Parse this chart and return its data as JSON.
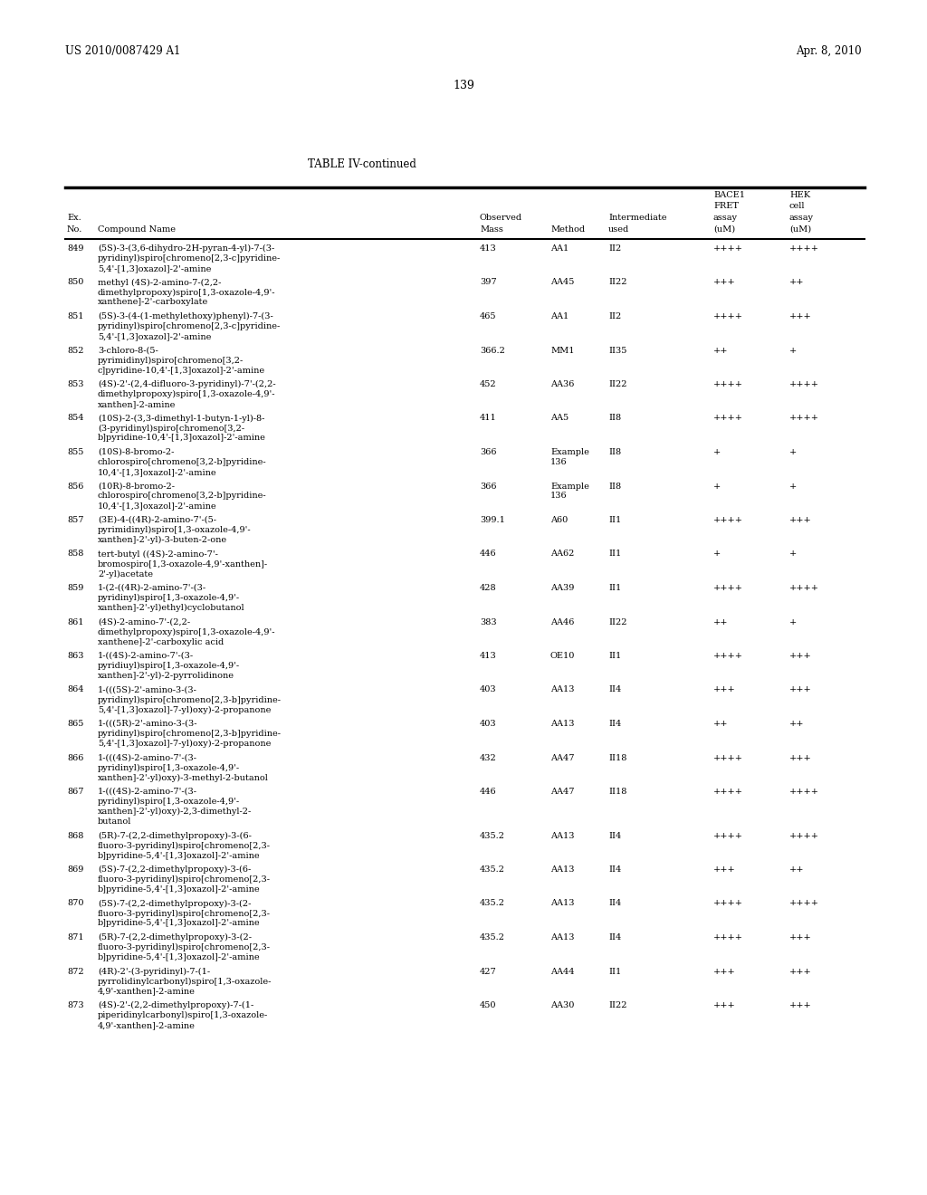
{
  "header_left": "US 2010/0087429 A1",
  "header_right": "Apr. 8, 2010",
  "page_number": "139",
  "table_title": "TABLE IV-continued",
  "rows": [
    [
      "849",
      "(5S)-3-(3,6-dihydro-2H-pyran-4-yl)-7-(3-\npyridinyl)spiro[chromeno[2,3-c]pyridine-\n5,4'-[1,3]oxazol]-2'-amine",
      "413",
      "AA1",
      "II2",
      "++++",
      "++++"
    ],
    [
      "850",
      "methyl (4S)-2-amino-7-(2,2-\ndimethylpropoxy)spiro[1,3-oxazole-4,9'-\nxanthene]-2'-carboxylate",
      "397",
      "AA45",
      "II22",
      "+++",
      "++"
    ],
    [
      "851",
      "(5S)-3-(4-(1-methylethoxy)phenyl)-7-(3-\npyridinyl)spiro[chromeno[2,3-c]pyridine-\n5,4'-[1,3]oxazol]-2'-amine",
      "465",
      "AA1",
      "II2",
      "++++",
      "+++"
    ],
    [
      "852",
      "3-chloro-8-(5-\npyrimidinyl)spiro[chromeno[3,2-\nc]pyridine-10,4'-[1,3]oxazol]-2'-amine",
      "366.2",
      "MM1",
      "II35",
      "++",
      "+"
    ],
    [
      "853",
      "(4S)-2'-(2,4-difluoro-3-pyridinyl)-7'-(2,2-\ndimethylpropoxy)spiro[1,3-oxazole-4,9'-\nxanthen]-2-amine",
      "452",
      "AA36",
      "II22",
      "++++",
      "++++"
    ],
    [
      "854",
      "(10S)-2-(3,3-dimethyl-1-butyn-1-yl)-8-\n(3-pyridinyl)spiro[chromeno[3,2-\nb]pyridine-10,4'-[1,3]oxazol]-2'-amine",
      "411",
      "AA5",
      "II8",
      "++++",
      "++++"
    ],
    [
      "855",
      "(10S)-8-bromo-2-\nchlorospiro[chromeno[3,2-b]pyridine-\n10,4'-[1,3]oxazol]-2'-amine",
      "366",
      "Example\n136",
      "II8",
      "+",
      "+"
    ],
    [
      "856",
      "(10R)-8-bromo-2-\nchlorospiro[chromeno[3,2-b]pyridine-\n10,4'-[1,3]oxazol]-2'-amine",
      "366",
      "Example\n136",
      "II8",
      "+",
      "+"
    ],
    [
      "857",
      "(3E)-4-((4R)-2-amino-7'-(5-\npyrimidinyl)spiro[1,3-oxazole-4,9'-\nxanthen]-2'-yl)-3-buten-2-one",
      "399.1",
      "A60",
      "II1",
      "++++",
      "+++"
    ],
    [
      "858",
      "tert-butyl ((4S)-2-amino-7'-\nbromospiro[1,3-oxazole-4,9'-xanthen]-\n2'-yl)acetate",
      "446",
      "AA62",
      "II1",
      "+",
      "+"
    ],
    [
      "859",
      "1-(2-((4R)-2-amino-7'-(3-\npyridinyl)spiro[1,3-oxazole-4,9'-\nxanthen]-2'-yl)ethyl)cyclobutanol",
      "428",
      "AA39",
      "II1",
      "++++",
      "++++"
    ],
    [
      "861",
      "(4S)-2-amino-7'-(2,2-\ndimethylpropoxy)spiro[1,3-oxazole-4,9'-\nxanthene]-2'-carboxylic acid",
      "383",
      "AA46",
      "II22",
      "++",
      "+"
    ],
    [
      "863",
      "1-((4S)-2-amino-7'-(3-\npyridiuyl)spiro[1,3-oxazole-4,9'-\nxanthen]-2'-yl)-2-pyrrolidinone",
      "413",
      "OE10",
      "II1",
      "++++",
      "+++"
    ],
    [
      "864",
      "1-(((5S)-2'-amino-3-(3-\npyridinyl)spiro[chromeno[2,3-b]pyridine-\n5,4'-[1,3]oxazol]-7-yl)oxy)-2-propanone",
      "403",
      "AA13",
      "II4",
      "+++",
      "+++"
    ],
    [
      "865",
      "1-(((5R)-2'-amino-3-(3-\npyridinyl)spiro[chromeno[2,3-b]pyridine-\n5,4'-[1,3]oxazol]-7-yl)oxy)-2-propanone",
      "403",
      "AA13",
      "II4",
      "++",
      "++"
    ],
    [
      "866",
      "1-(((4S)-2-amino-7'-(3-\npyridinyl)spiro[1,3-oxazole-4,9'-\nxanthen]-2'-yl)oxy)-3-methyl-2-butanol",
      "432",
      "AA47",
      "II18",
      "++++",
      "+++"
    ],
    [
      "867",
      "1-(((4S)-2-amino-7'-(3-\npyridinyl)spiro[1,3-oxazole-4,9'-\nxanthen]-2'-yl)oxy)-2,3-dimethyl-2-\nbutanol",
      "446",
      "AA47",
      "II18",
      "++++",
      "++++"
    ],
    [
      "868",
      "(5R)-7-(2,2-dimethylpropoxy)-3-(6-\nfluoro-3-pyridinyl)spiro[chromeno[2,3-\nb]pyridine-5,4'-[1,3]oxazol]-2'-amine",
      "435.2",
      "AA13",
      "II4",
      "++++",
      "++++"
    ],
    [
      "869",
      "(5S)-7-(2,2-dimethylpropoxy)-3-(6-\nfluoro-3-pyridinyl)spiro[chromeno[2,3-\nb]pyridine-5,4'-[1,3]oxazol]-2'-amine",
      "435.2",
      "AA13",
      "II4",
      "+++",
      "++"
    ],
    [
      "870",
      "(5S)-7-(2,2-dimethylpropoxy)-3-(2-\nfluoro-3-pyridinyl)spiro[chromeno[2,3-\nb]pyridine-5,4'-[1,3]oxazol]-2'-amine",
      "435.2",
      "AA13",
      "II4",
      "++++",
      "++++"
    ],
    [
      "871",
      "(5R)-7-(2,2-dimethylpropoxy)-3-(2-\nfluoro-3-pyridinyl)spiro[chromeno[2,3-\nb]pyridine-5,4'-[1,3]oxazol]-2'-amine",
      "435.2",
      "AA13",
      "II4",
      "++++",
      "+++"
    ],
    [
      "872",
      "(4R)-2'-(3-pyridinyl)-7-(1-\npyrrolidinylcarbonyl)spiro[1,3-oxazole-\n4,9'-xanthen]-2-amine",
      "427",
      "AA44",
      "II1",
      "+++",
      "+++"
    ],
    [
      "873",
      "(4S)-2'-(2,2-dimethylpropoxy)-7-(1-\npiperidinylcarbonyl)spiro[1,3-oxazole-\n4,9'-xanthen]-2-amine",
      "450",
      "AA30",
      "II22",
      "+++",
      "+++"
    ]
  ]
}
